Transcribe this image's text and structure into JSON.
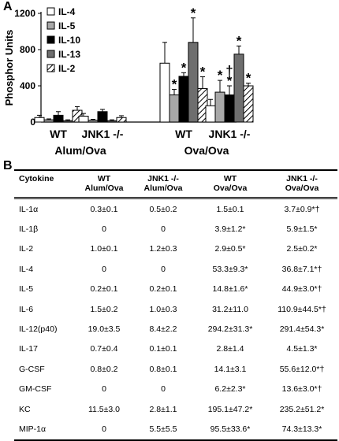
{
  "panel_a_label": "A",
  "panel_b_label": "B",
  "chart_data": {
    "type": "bar",
    "ylabel": "Phosphor Units",
    "ylim": [
      0,
      1200
    ],
    "yticks": [
      0,
      400,
      800,
      1200
    ],
    "legend_position": "top-left",
    "groups": [
      {
        "label": "WT",
        "super": "Alum/Ova"
      },
      {
        "label": "JNK1 -/-",
        "super": "Alum/Ova"
      },
      {
        "label": "WT",
        "super": "Ova/Ova"
      },
      {
        "label": "JNK1 -/-",
        "super": "Ova/Ova"
      }
    ],
    "group_super_labels": [
      "Alum/Ova",
      "Ova/Ova"
    ],
    "series": [
      {
        "name": "IL-4",
        "fill": "#ffffff",
        "values": [
          50,
          65,
          650,
          180
        ],
        "errors": [
          25,
          30,
          230,
          70
        ],
        "marks": [
          "",
          "",
          "",
          ""
        ]
      },
      {
        "name": "IL-5",
        "fill": "#a8a8a8",
        "values": [
          25,
          20,
          300,
          330
        ],
        "errors": [
          10,
          10,
          60,
          130
        ],
        "marks": [
          "",
          "",
          "*",
          "*"
        ]
      },
      {
        "name": "IL-10",
        "fill": "#000000",
        "values": [
          75,
          115,
          505,
          300
        ],
        "errors": [
          40,
          25,
          40,
          100
        ],
        "marks": [
          "",
          "",
          "*",
          "*"
        ]
      },
      {
        "name": "IL-13",
        "fill": "#6e6e6e",
        "values": [
          15,
          15,
          880,
          750
        ],
        "errors": [
          10,
          10,
          270,
          90
        ],
        "marks": [
          "",
          "",
          "*",
          "*"
        ]
      },
      {
        "name": "IL-2",
        "fill": "hatch",
        "values": [
          130,
          50,
          370,
          400
        ],
        "errors": [
          40,
          20,
          130,
          30
        ],
        "marks": [
          "",
          "",
          "*",
          "*"
        ]
      }
    ],
    "dagger_marks": [
      {
        "group": 3,
        "series": 2,
        "text": "†"
      }
    ]
  },
  "table": {
    "headers": [
      {
        "top": "Cytokine",
        "bottom": ""
      },
      {
        "top": "WT",
        "bottom": "Alum/Ova"
      },
      {
        "top": "JNK1 -/-",
        "bottom": "Alum/Ova"
      },
      {
        "top": "WT",
        "bottom": "Ova/Ova"
      },
      {
        "top": "JNK1 -/-",
        "bottom": "Ova/Ova"
      }
    ],
    "rows": [
      [
        "IL-1α",
        "0.3±0.1",
        "0.5±0.2",
        "1.5±0.1",
        "3.7±0.9*†"
      ],
      [
        "IL-1β",
        "0",
        "0",
        "3.9±1.2*",
        "5.9±1.5*"
      ],
      [
        "IL-2",
        "1.0±0.1",
        "1.2±0.3",
        "2.9±0.5*",
        "2.5±0.2*"
      ],
      [
        "IL-4",
        "0",
        "0",
        "53.3±9.3*",
        "36.8±7.1*†"
      ],
      [
        "IL-5",
        "0.2±0.1",
        "0.2±0.1",
        "14.8±1.6*",
        "44.9±3.0*†"
      ],
      [
        "IL-6",
        "1.5±0.2",
        "1.0±0.3",
        "31.2±11.0",
        "110.9±44.5*†"
      ],
      [
        "IL-12(p40)",
        "19.0±3.5",
        "8.4±2.2",
        "294.2±31.3*",
        "291.4±54.3*"
      ],
      [
        "IL-17",
        "0.7±0.4",
        "0.1±0.1",
        "2.8±1.4",
        "4.5±1.3*"
      ],
      [
        "G-CSF",
        "0.8±0.2",
        "0.8±0.1",
        "14.1±3.1",
        "55.6±12.0*†"
      ],
      [
        "GM-CSF",
        "0",
        "0",
        "6.2±2.3*",
        "13.6±3.0*†"
      ],
      [
        "KC",
        "11.5±3.0",
        "2.8±1.1",
        "195.1±47.2*",
        "235.2±51.2*"
      ],
      [
        "MIP-1α",
        "0",
        "5.5±5.5",
        "95.5±33.6*",
        "74.3±13.3*"
      ]
    ]
  }
}
